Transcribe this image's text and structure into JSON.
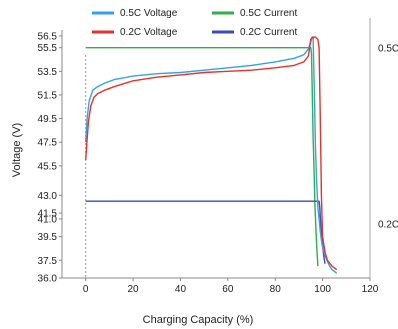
{
  "chart_data": {
    "type": "line",
    "xlabel": "Charging Capacity (%)",
    "ylabel": "Voltage (V)",
    "xlim": [
      -10,
      120
    ],
    "ylim": [
      36.0,
      57.0
    ],
    "x_ticks": [
      0,
      20,
      40,
      60,
      80,
      100,
      120
    ],
    "x_tick_labels": [
      "0",
      "20",
      "40",
      "60",
      "80",
      "100",
      "120"
    ],
    "y_ticks": [
      36.0,
      37.5,
      39.5,
      41.0,
      41.5,
      43.0,
      45.5,
      47.5,
      49.5,
      51.5,
      53.5,
      55.5,
      56.5
    ],
    "y_tick_labels": [
      "36.0",
      "37.5",
      "39.5",
      "41.0",
      "41.5",
      "43.0",
      "45.5",
      "47.5",
      "49.5",
      "51.5",
      "53.5",
      "55.5",
      "56.5"
    ],
    "right_axis_labels": [
      {
        "text": "0.5C",
        "y": 55.5
      },
      {
        "text": "0.2C",
        "y": 40.6
      }
    ],
    "grid": false,
    "legend_position": "top",
    "series": [
      {
        "name": "0.5C Voltage",
        "color": "#33a3e8",
        "x": [
          0,
          0.6,
          1.5,
          3,
          5,
          8,
          12,
          20,
          30,
          40,
          50,
          60,
          70,
          80,
          88,
          92,
          94,
          95,
          95.5,
          96,
          96.5,
          97,
          97.5,
          98,
          98.5,
          99,
          99.5,
          100,
          101,
          102,
          103,
          104,
          106
        ],
        "y": [
          47.5,
          49.5,
          51.0,
          51.9,
          52.2,
          52.5,
          52.8,
          53.1,
          53.3,
          53.4,
          53.6,
          53.8,
          54.0,
          54.3,
          54.6,
          54.9,
          55.4,
          56.0,
          56.4,
          56.4,
          52.0,
          47.0,
          44.0,
          42.0,
          41.0,
          40.0,
          39.2,
          38.6,
          37.9,
          37.4,
          37.0,
          36.7,
          36.4
        ]
      },
      {
        "name": "0.2C Voltage",
        "color": "#e8312a",
        "x": [
          0,
          0.5,
          1.2,
          2.2,
          3.5,
          5,
          8,
          12,
          20,
          30,
          40,
          50,
          60,
          70,
          80,
          88,
          92,
          94,
          95,
          96,
          97,
          98,
          98.5,
          99,
          99.5,
          100,
          101,
          102,
          104,
          106
        ],
        "y": [
          46.0,
          47.5,
          49.3,
          50.6,
          51.3,
          51.6,
          51.9,
          52.2,
          52.7,
          53.0,
          53.2,
          53.4,
          53.5,
          53.6,
          53.8,
          54.0,
          54.3,
          54.8,
          56.2,
          56.4,
          56.4,
          56.2,
          55.5,
          50.0,
          43.0,
          39.5,
          38.2,
          37.5,
          37.0,
          36.7
        ]
      },
      {
        "name": "0.5C Current",
        "color": "#2fae4a",
        "x": [
          0,
          95,
          95.3,
          95.6,
          96,
          96.4,
          96.8,
          97.2,
          97.6,
          98.0
        ],
        "y": [
          55.5,
          55.5,
          55.0,
          52.0,
          48.0,
          45.0,
          42.0,
          40.0,
          38.4,
          37.0
        ]
      },
      {
        "name": "0.2C Current",
        "color": "#3a4bb7",
        "x": [
          0,
          98.5,
          98.8,
          99.2,
          99.6,
          100,
          100.3,
          100.6,
          101
        ],
        "y": [
          42.5,
          42.5,
          42.0,
          40.5,
          39.5,
          38.8,
          38.2,
          37.7,
          37.2
        ]
      }
    ]
  }
}
